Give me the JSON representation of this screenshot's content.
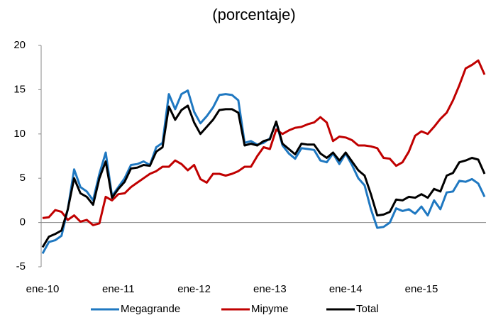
{
  "chart_data": {
    "type": "line",
    "title": "(porcentaje)",
    "categories": [
      "ene-10",
      null,
      null,
      null,
      null,
      null,
      null,
      null,
      null,
      null,
      null,
      null,
      "ene-11",
      null,
      null,
      null,
      null,
      null,
      null,
      null,
      null,
      null,
      null,
      null,
      "ene-12",
      null,
      null,
      null,
      null,
      null,
      null,
      null,
      null,
      null,
      null,
      null,
      "ene-13",
      null,
      null,
      null,
      null,
      null,
      null,
      null,
      null,
      null,
      null,
      null,
      "ene-14",
      null,
      null,
      null,
      null,
      null,
      null,
      null,
      null,
      null,
      null,
      null,
      "ene-15",
      null,
      null,
      null,
      null,
      null,
      null,
      null,
      null,
      null,
      null
    ],
    "series": [
      {
        "name": "Megagrande",
        "color": "#1f78c1",
        "values": [
          -3.5,
          -2.2,
          -2.0,
          -1.5,
          1.5,
          6.0,
          4.0,
          3.5,
          2.5,
          5.5,
          7.9,
          3.0,
          4.0,
          5.0,
          6.5,
          6.6,
          6.9,
          6.5,
          8.5,
          9.0,
          14.5,
          12.8,
          14.5,
          14.9,
          12.5,
          11.2,
          12.0,
          13.0,
          14.4,
          14.5,
          14.4,
          13.8,
          9.0,
          9.2,
          8.8,
          9.0,
          9.5,
          11.3,
          8.7,
          7.8,
          7.2,
          8.4,
          8.3,
          8.2,
          7.0,
          6.8,
          7.8,
          6.6,
          7.8,
          6.5,
          5.0,
          4.2,
          1.5,
          -0.6,
          -0.5,
          0.0,
          1.6,
          1.3,
          1.5,
          1.0,
          1.8,
          0.8,
          2.5,
          1.5,
          3.4,
          3.5,
          4.7,
          4.6,
          4.9,
          4.4,
          2.9
        ]
      },
      {
        "name": "Mipyme",
        "color": "#c00000",
        "values": [
          0.5,
          0.6,
          1.4,
          1.2,
          0.3,
          0.8,
          0.1,
          0.3,
          -0.3,
          -0.1,
          2.9,
          2.5,
          3.2,
          3.3,
          4.0,
          4.5,
          5.0,
          5.5,
          5.8,
          6.3,
          6.3,
          7.0,
          6.6,
          5.9,
          6.5,
          4.9,
          4.5,
          5.5,
          5.5,
          5.3,
          5.5,
          5.8,
          6.3,
          6.3,
          7.5,
          8.5,
          8.3,
          10.5,
          10.0,
          10.4,
          10.7,
          10.8,
          11.1,
          11.3,
          11.9,
          11.3,
          9.2,
          9.7,
          9.6,
          9.3,
          8.7,
          8.7,
          8.6,
          8.4,
          7.3,
          7.2,
          6.4,
          6.8,
          8.0,
          9.8,
          10.3,
          10.0,
          10.8,
          11.7,
          12.4,
          13.8,
          15.5,
          17.4,
          17.8,
          18.3,
          16.7
        ]
      },
      {
        "name": "Total",
        "color": "#000000",
        "values": [
          -2.8,
          -1.6,
          -1.3,
          -0.9,
          1.5,
          5.0,
          3.3,
          2.9,
          2.0,
          5.0,
          6.9,
          2.8,
          3.8,
          4.6,
          6.1,
          6.2,
          6.5,
          6.4,
          8.0,
          8.5,
          13.1,
          11.6,
          12.7,
          13.2,
          11.3,
          10.0,
          10.8,
          11.6,
          12.7,
          12.8,
          12.8,
          12.4,
          8.7,
          8.9,
          8.7,
          9.2,
          9.4,
          11.4,
          8.9,
          8.3,
          7.7,
          8.9,
          8.8,
          8.8,
          7.8,
          7.3,
          7.9,
          7.0,
          7.9,
          6.9,
          5.9,
          5.3,
          3.2,
          0.8,
          0.9,
          1.2,
          2.6,
          2.5,
          2.9,
          2.8,
          3.2,
          2.8,
          3.8,
          3.5,
          5.3,
          5.6,
          6.8,
          7.0,
          7.3,
          7.1,
          5.5
        ]
      }
    ],
    "ylim": [
      -5,
      20
    ],
    "yticks": [
      -5,
      0,
      5,
      10,
      15,
      20
    ]
  }
}
